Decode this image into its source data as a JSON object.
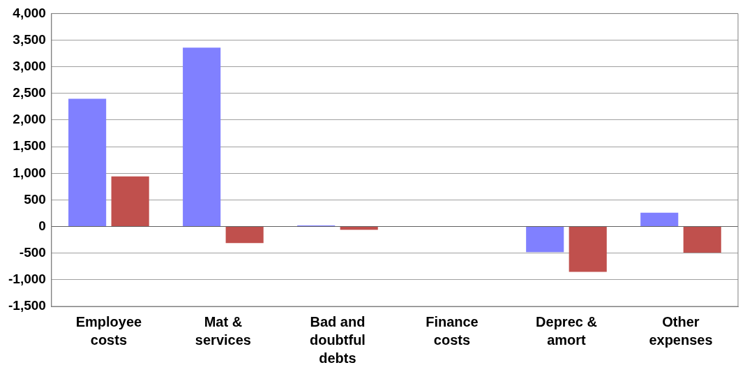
{
  "chart_data": {
    "type": "bar",
    "categories": [
      "Employee costs",
      "Mat & services",
      "Bad and doubtful debts",
      "Finance costs",
      "Deprec & amort",
      "Other expenses"
    ],
    "series": [
      {
        "color": "#8080ff",
        "values": [
          2400,
          3360,
          20,
          0,
          -480,
          260
        ]
      },
      {
        "color": "#c0504d",
        "values": [
          940,
          -310,
          -60,
          0,
          -850,
          -490
        ]
      }
    ],
    "ylim": [
      -1500,
      4000
    ],
    "yticks": [
      {
        "value": -1500,
        "label": "-1,500"
      },
      {
        "value": -1000,
        "label": "-1,000"
      },
      -500,
      0,
      500,
      {
        "value": 1000,
        "label": "1,000"
      },
      {
        "value": 1500,
        "label": "1,500"
      },
      {
        "value": 2000,
        "label": "2,000"
      },
      {
        "value": 2500,
        "label": "2,500"
      },
      {
        "value": 3000,
        "label": "3,000"
      },
      {
        "value": 3500,
        "label": "3,500"
      },
      {
        "value": 4000,
        "label": "4,000"
      }
    ],
    "grid": "y",
    "legend": false
  }
}
